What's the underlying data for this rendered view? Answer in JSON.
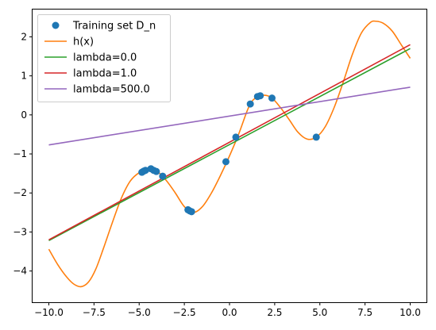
{
  "chart_data": {
    "type": "line",
    "title": "",
    "xlabel": "",
    "ylabel": "",
    "xlim": [
      -10.9,
      10.9
    ],
    "ylim": [
      -4.8,
      2.7
    ],
    "x_ticks": [
      -10.0,
      -7.5,
      -5.0,
      -2.5,
      0.0,
      2.5,
      5.0,
      7.5,
      10.0
    ],
    "x_tick_labels": [
      "−10.0",
      "−7.5",
      "−5.0",
      "−2.5",
      "0.0",
      "2.5",
      "5.0",
      "7.5",
      "10.0"
    ],
    "y_ticks": [
      -4,
      -3,
      -2,
      -1,
      0,
      1,
      2
    ],
    "y_tick_labels": [
      "−4",
      "−3",
      "−2",
      "−1",
      "0",
      "1",
      "2"
    ],
    "grid": false,
    "legend_position": "top-left",
    "series": [
      {
        "name": "Training set D_n",
        "kind": "scatter",
        "color": "#1f77b4",
        "points": [
          [
            -4.85,
            -1.47
          ],
          [
            -4.75,
            -1.44
          ],
          [
            -4.65,
            -1.42
          ],
          [
            -4.35,
            -1.38
          ],
          [
            -4.2,
            -1.42
          ],
          [
            -4.05,
            -1.45
          ],
          [
            -3.7,
            -1.57
          ],
          [
            -2.3,
            -2.43
          ],
          [
            -2.2,
            -2.46
          ],
          [
            -2.1,
            -2.48
          ],
          [
            -0.2,
            -1.2
          ],
          [
            0.35,
            -0.57
          ],
          [
            1.15,
            0.28
          ],
          [
            1.55,
            0.47
          ],
          [
            1.7,
            0.49
          ],
          [
            2.35,
            0.43
          ],
          [
            4.8,
            -0.57
          ]
        ]
      },
      {
        "name": "h(x)",
        "kind": "curve",
        "color": "#ff7f0e",
        "points": [
          [
            -10.0,
            -3.44
          ],
          [
            -9.5,
            -3.84
          ],
          [
            -9.0,
            -4.16
          ],
          [
            -8.6,
            -4.34
          ],
          [
            -8.2,
            -4.4
          ],
          [
            -7.8,
            -4.28
          ],
          [
            -7.4,
            -3.95
          ],
          [
            -7.0,
            -3.45
          ],
          [
            -6.5,
            -2.78
          ],
          [
            -6.0,
            -2.15
          ],
          [
            -5.5,
            -1.7
          ],
          [
            -5.0,
            -1.48
          ],
          [
            -4.5,
            -1.4
          ],
          [
            -4.0,
            -1.45
          ],
          [
            -3.5,
            -1.68
          ],
          [
            -3.0,
            -2.0
          ],
          [
            -2.5,
            -2.35
          ],
          [
            -2.0,
            -2.5
          ],
          [
            -1.5,
            -2.35
          ],
          [
            -1.0,
            -2.0
          ],
          [
            -0.5,
            -1.55
          ],
          [
            0.0,
            -1.05
          ],
          [
            0.5,
            -0.5
          ],
          [
            1.0,
            0.13
          ],
          [
            1.3,
            0.38
          ],
          [
            1.8,
            0.5
          ],
          [
            2.3,
            0.45
          ],
          [
            2.8,
            0.2
          ],
          [
            3.3,
            -0.12
          ],
          [
            3.8,
            -0.45
          ],
          [
            4.3,
            -0.62
          ],
          [
            4.8,
            -0.57
          ],
          [
            5.3,
            -0.3
          ],
          [
            5.8,
            0.2
          ],
          [
            6.3,
            0.85
          ],
          [
            6.8,
            1.55
          ],
          [
            7.3,
            2.1
          ],
          [
            7.8,
            2.37
          ],
          [
            8.1,
            2.4
          ],
          [
            8.5,
            2.35
          ],
          [
            9.0,
            2.15
          ],
          [
            9.5,
            1.8
          ],
          [
            10.0,
            1.45
          ]
        ]
      },
      {
        "name": "lambda=0.0",
        "kind": "line",
        "color": "#2ca02c",
        "points": [
          [
            -10.0,
            -3.22
          ],
          [
            10.0,
            1.7
          ]
        ]
      },
      {
        "name": "lambda=1.0",
        "kind": "line",
        "color": "#d62728",
        "points": [
          [
            -10.0,
            -3.2
          ],
          [
            10.0,
            1.8
          ]
        ]
      },
      {
        "name": "lambda=500.0",
        "kind": "line",
        "color": "#9467bd",
        "points": [
          [
            -10.0,
            -0.77
          ],
          [
            10.0,
            0.71
          ]
        ]
      }
    ]
  }
}
